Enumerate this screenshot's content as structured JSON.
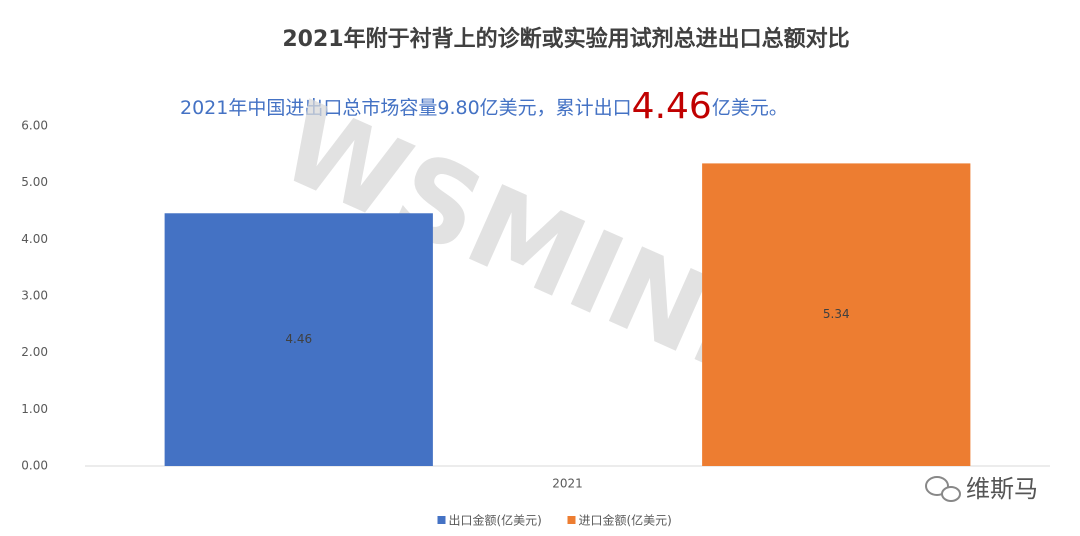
{
  "chart_data": {
    "type": "bar",
    "title": "2021年附于衬背上的诊断或实验用试剂总进出口总额对比",
    "annotation": [
      "2021年中国进出口总市场容量9.80亿美元，累计出口",
      "4.46",
      "亿美元。"
    ],
    "categories": [
      "2021"
    ],
    "series": [
      {
        "name": "出口金额(亿美元)",
        "color": "#4472c4",
        "values": [
          4.46
        ]
      },
      {
        "name": "进口金额(亿美元)",
        "color": "#ed7d31",
        "values": [
          5.34
        ]
      }
    ],
    "ylim": [
      0,
      6
    ],
    "yticks": [
      {
        "value": 0,
        "label": "0.00"
      },
      {
        "value": 1,
        "label": "1.00"
      },
      {
        "value": 2,
        "label": "2.00"
      },
      {
        "value": 3,
        "label": "3.00"
      },
      {
        "value": 4,
        "label": "4.00"
      },
      {
        "value": 5,
        "label": "5.00"
      },
      {
        "value": 6,
        "label": "6.00"
      }
    ],
    "grid": false,
    "legend": "bottom",
    "watermark": "WSMINFO",
    "logo": "维斯马"
  }
}
